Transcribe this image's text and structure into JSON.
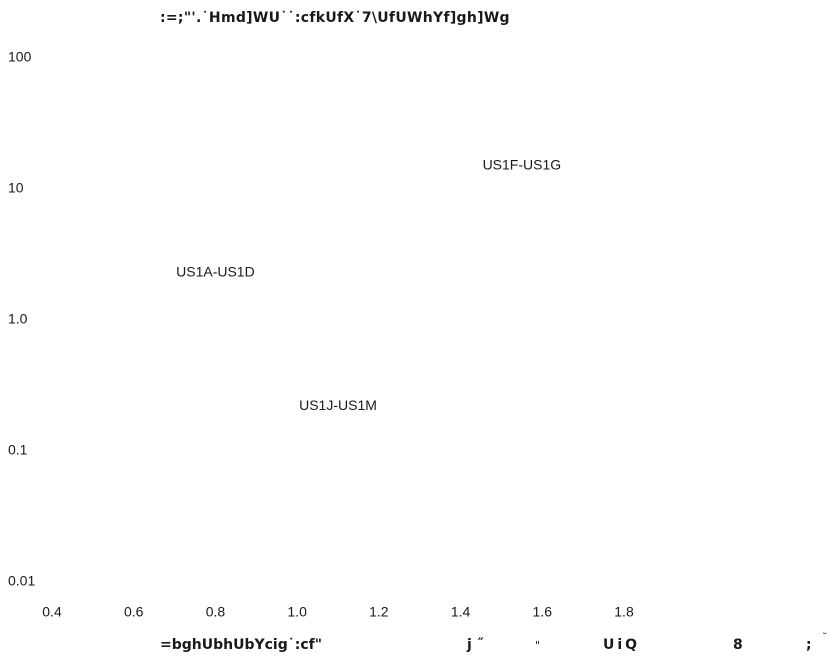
{
  "chart_data": {
    "type": "scatter",
    "title": ":=;\"'.˙Hmd]WU˙˙:cfkUfX˙7\\UfUWhYf]gh]Wg",
    "xlabel_fragments": [
      "=bghUbhUbYcig˙:cf\"",
      "j ˝",
      "\"",
      "UiQ",
      "8",
      ";",
      "˘"
    ],
    "ylabel": "",
    "y_scale": "log",
    "y_ticks": [
      "100",
      "10",
      "1.0",
      "0.1",
      "0.01"
    ],
    "y_tick_values": [
      100,
      10,
      1,
      0.1,
      0.01
    ],
    "ylim": [
      0.01,
      100
    ],
    "x_ticks": [
      "0.4",
      "0.6",
      "0.8",
      "1.0",
      "1.2",
      "1.4",
      "1.6",
      "1.8"
    ],
    "x_tick_values": [
      0.4,
      0.6,
      0.8,
      1.0,
      1.2,
      1.4,
      1.6,
      1.8
    ],
    "xlim": [
      0.4,
      1.8
    ],
    "annotations": [
      {
        "text": "US1F-US1G",
        "x": 1.55,
        "y": 15
      },
      {
        "text": "US1A-US1D",
        "x": 0.8,
        "y": 2.3
      },
      {
        "text": "US1J-US1M",
        "x": 1.1,
        "y": 0.22
      }
    ],
    "grid": false,
    "axis_lines": false
  }
}
